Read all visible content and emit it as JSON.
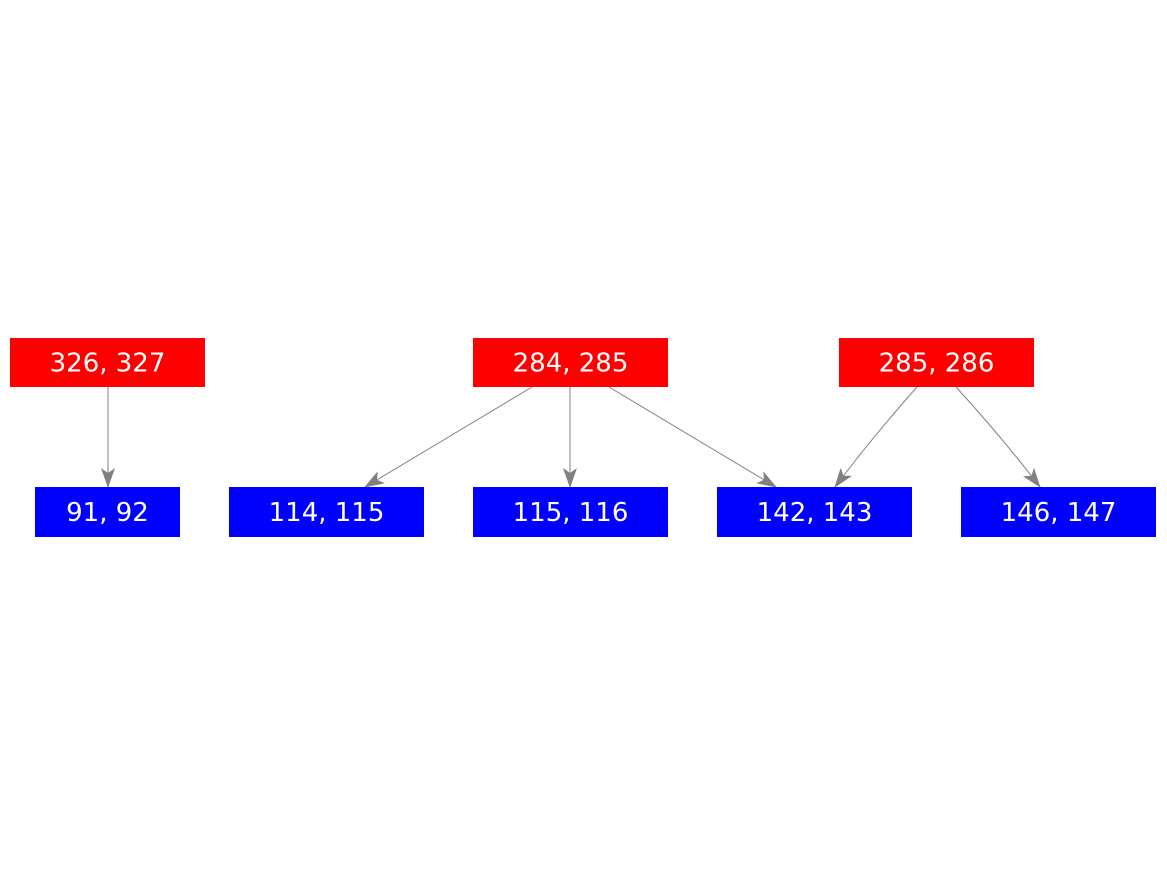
{
  "diagram": {
    "colors": {
      "source": "#ff0000",
      "target": "#0000ff",
      "edge": "#808080",
      "text": "#ffffff"
    },
    "nodes": [
      {
        "id": "n326",
        "label": "326, 327",
        "kind": "source"
      },
      {
        "id": "n284",
        "label": "284, 285",
        "kind": "source"
      },
      {
        "id": "n285",
        "label": "285, 286",
        "kind": "source"
      },
      {
        "id": "n91",
        "label": "91, 92",
        "kind": "target"
      },
      {
        "id": "n114",
        "label": "114, 115",
        "kind": "target"
      },
      {
        "id": "n115",
        "label": "115, 116",
        "kind": "target"
      },
      {
        "id": "n142",
        "label": "142, 143",
        "kind": "target"
      },
      {
        "id": "n146",
        "label": "146, 147",
        "kind": "target"
      }
    ],
    "edges": [
      {
        "from": "n326",
        "to": "n91"
      },
      {
        "from": "n284",
        "to": "n114"
      },
      {
        "from": "n284",
        "to": "n115"
      },
      {
        "from": "n284",
        "to": "n142"
      },
      {
        "from": "n285",
        "to": "n142"
      },
      {
        "from": "n285",
        "to": "n146"
      }
    ]
  }
}
